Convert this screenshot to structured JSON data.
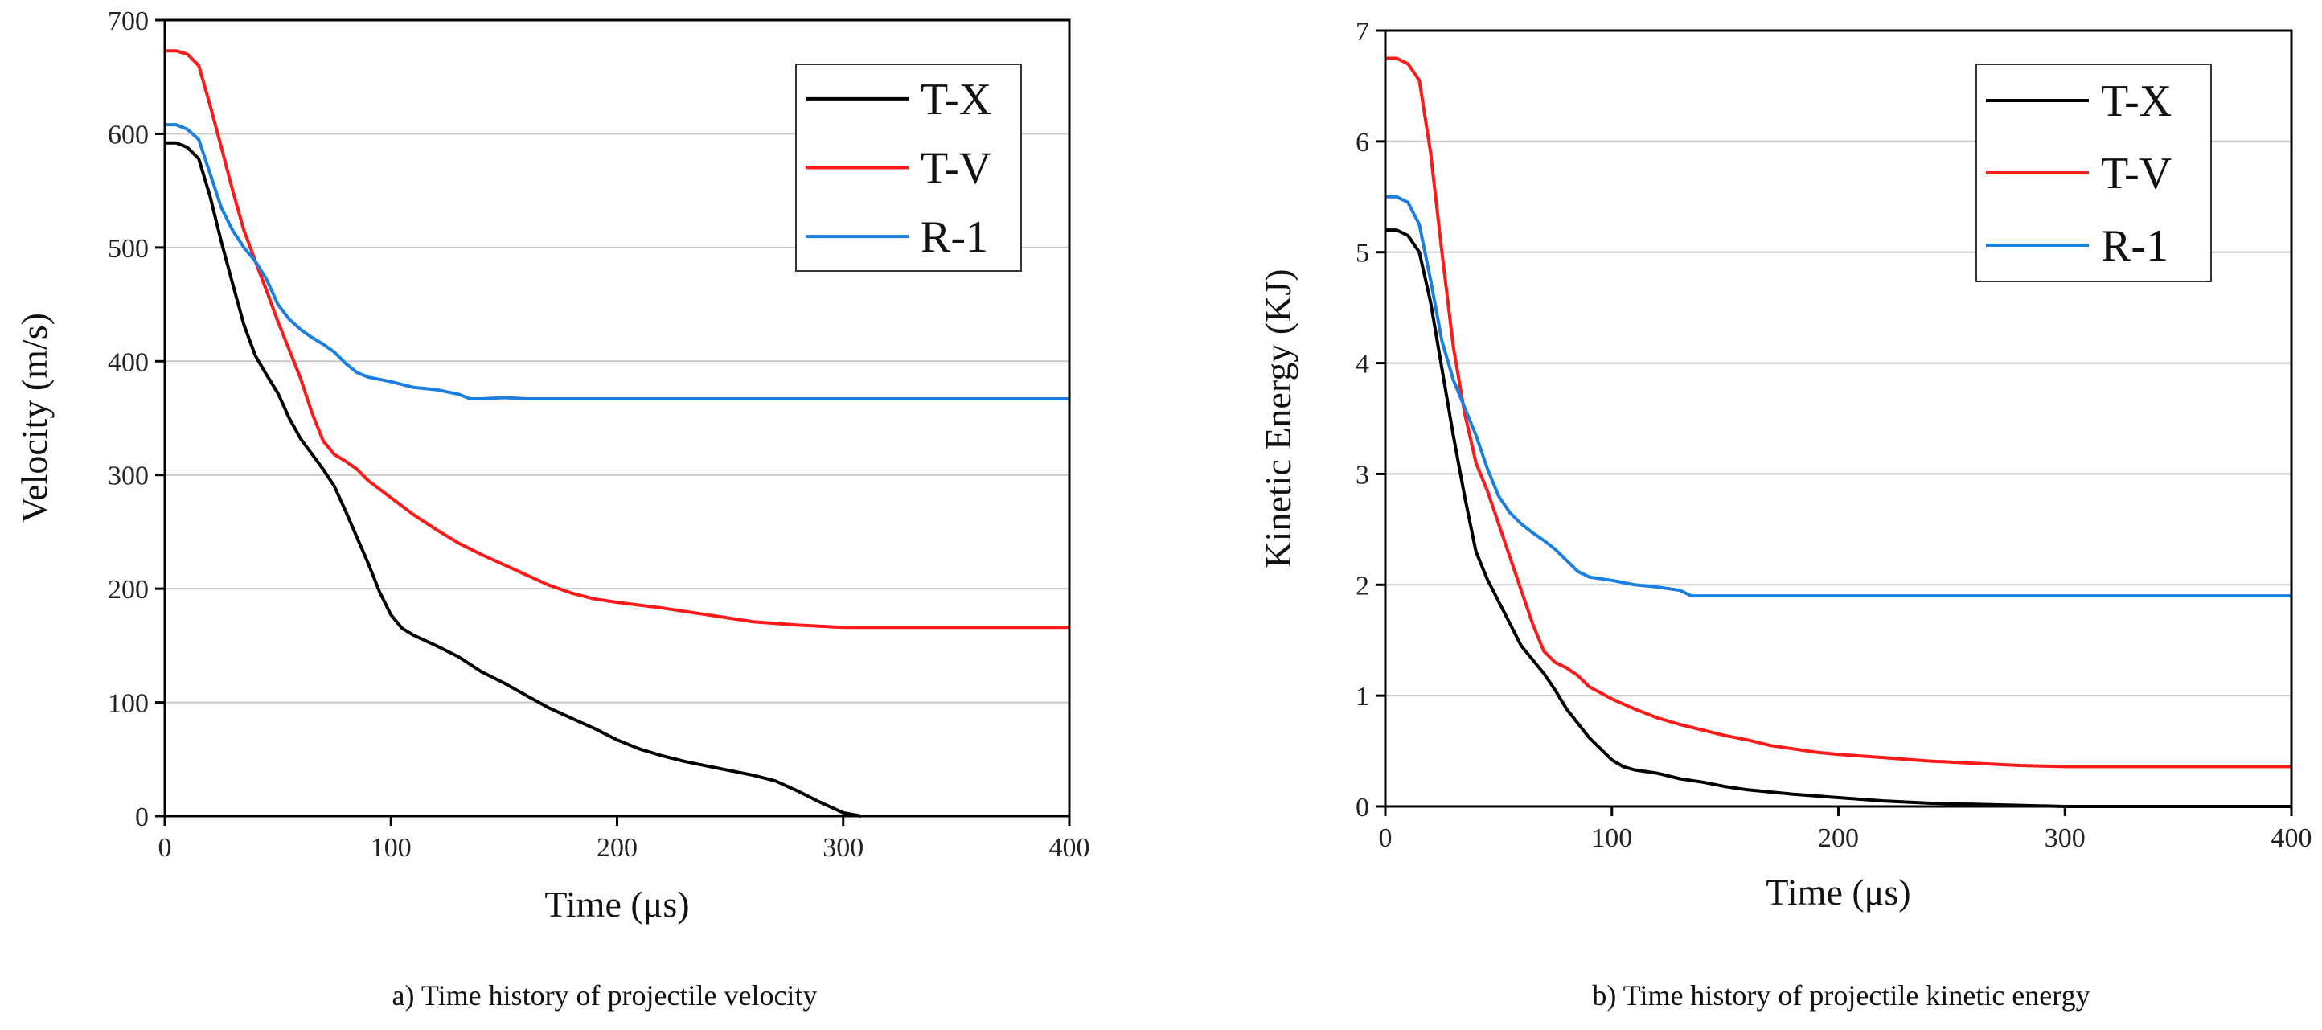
{
  "chart_data": [
    {
      "type": "line",
      "caption": "a) Time history of projectile velocity",
      "xlabel": "Time (μs)",
      "ylabel": "Velocity (m/s)",
      "xlim": [
        0,
        400
      ],
      "ylim": [
        0,
        700
      ],
      "xticks": [
        0,
        100,
        200,
        300,
        400
      ],
      "yticks": [
        0,
        100,
        200,
        300,
        400,
        500,
        600,
        700
      ],
      "grid": "horizontal",
      "legend": "top-right",
      "series": [
        {
          "name": "T-X",
          "color": "#000000",
          "points": [
            [
              0,
              592
            ],
            [
              5,
              592
            ],
            [
              10,
              588
            ],
            [
              15,
              578
            ],
            [
              20,
              545
            ],
            [
              25,
              505
            ],
            [
              30,
              468
            ],
            [
              35,
              432
            ],
            [
              40,
              405
            ],
            [
              45,
              388
            ],
            [
              50,
              372
            ],
            [
              55,
              350
            ],
            [
              60,
              332
            ],
            [
              70,
              305
            ],
            [
              75,
              290
            ],
            [
              80,
              268
            ],
            [
              90,
              222
            ],
            [
              95,
              197
            ],
            [
              100,
              177
            ],
            [
              105,
              165
            ],
            [
              110,
              159
            ],
            [
              120,
              150
            ],
            [
              130,
              140
            ],
            [
              140,
              127
            ],
            [
              150,
              117
            ],
            [
              160,
              106
            ],
            [
              170,
              95
            ],
            [
              180,
              86
            ],
            [
              190,
              77
            ],
            [
              200,
              67
            ],
            [
              210,
              59
            ],
            [
              220,
              53
            ],
            [
              230,
              48
            ],
            [
              240,
              44
            ],
            [
              250,
              40
            ],
            [
              260,
              36
            ],
            [
              270,
              31
            ],
            [
              280,
              22
            ],
            [
              290,
              12
            ],
            [
              300,
              3
            ],
            [
              308,
              0
            ]
          ]
        },
        {
          "name": "T-V",
          "color": "#ff1a1a",
          "points": [
            [
              0,
              673
            ],
            [
              5,
              673
            ],
            [
              10,
              670
            ],
            [
              15,
              660
            ],
            [
              20,
              625
            ],
            [
              25,
              588
            ],
            [
              30,
              550
            ],
            [
              35,
              515
            ],
            [
              40,
              488
            ],
            [
              45,
              462
            ],
            [
              50,
              435
            ],
            [
              55,
              410
            ],
            [
              60,
              385
            ],
            [
              65,
              355
            ],
            [
              70,
              330
            ],
            [
              75,
              318
            ],
            [
              80,
              312
            ],
            [
              85,
              305
            ],
            [
              90,
              295
            ],
            [
              100,
              280
            ],
            [
              110,
              265
            ],
            [
              120,
              252
            ],
            [
              130,
              240
            ],
            [
              140,
              230
            ],
            [
              150,
              221
            ],
            [
              160,
              212
            ],
            [
              170,
              203
            ],
            [
              180,
              196
            ],
            [
              190,
              191
            ],
            [
              200,
              188
            ],
            [
              220,
              183
            ],
            [
              240,
              177
            ],
            [
              260,
              171
            ],
            [
              280,
              168
            ],
            [
              300,
              166
            ],
            [
              320,
              166
            ],
            [
              400,
              166
            ]
          ]
        },
        {
          "name": "R-1",
          "color": "#1a7fe0",
          "points": [
            [
              0,
              608
            ],
            [
              5,
              608
            ],
            [
              10,
              604
            ],
            [
              15,
              595
            ],
            [
              20,
              565
            ],
            [
              25,
              535
            ],
            [
              30,
              515
            ],
            [
              35,
              500
            ],
            [
              40,
              488
            ],
            [
              45,
              472
            ],
            [
              50,
              450
            ],
            [
              55,
              437
            ],
            [
              60,
              428
            ],
            [
              65,
              421
            ],
            [
              70,
              415
            ],
            [
              75,
              408
            ],
            [
              80,
              398
            ],
            [
              85,
              390
            ],
            [
              90,
              386
            ],
            [
              100,
              382
            ],
            [
              110,
              377
            ],
            [
              120,
              375
            ],
            [
              130,
              371
            ],
            [
              135,
              367
            ],
            [
              140,
              367
            ],
            [
              150,
              368
            ],
            [
              160,
              367
            ],
            [
              400,
              367
            ]
          ]
        }
      ]
    },
    {
      "type": "line",
      "caption": "b) Time history of projectile kinetic energy",
      "xlabel": "Time (μs)",
      "ylabel": "Kinetic Energy (KJ)",
      "xlim": [
        0,
        400
      ],
      "ylim": [
        0,
        7
      ],
      "xticks": [
        0,
        100,
        200,
        300,
        400
      ],
      "yticks": [
        0,
        1,
        2,
        3,
        4,
        5,
        6,
        7
      ],
      "grid": "horizontal",
      "legend": "top-right",
      "series": [
        {
          "name": "T-X",
          "color": "#000000",
          "points": [
            [
              0,
              5.2
            ],
            [
              5,
              5.2
            ],
            [
              10,
              5.15
            ],
            [
              15,
              5.0
            ],
            [
              20,
              4.55
            ],
            [
              25,
              3.95
            ],
            [
              30,
              3.35
            ],
            [
              35,
              2.8
            ],
            [
              40,
              2.3
            ],
            [
              45,
              2.05
            ],
            [
              50,
              1.85
            ],
            [
              55,
              1.65
            ],
            [
              60,
              1.45
            ],
            [
              70,
              1.2
            ],
            [
              75,
              1.05
            ],
            [
              80,
              0.88
            ],
            [
              90,
              0.62
            ],
            [
              95,
              0.52
            ],
            [
              100,
              0.42
            ],
            [
              105,
              0.36
            ],
            [
              110,
              0.33
            ],
            [
              120,
              0.3
            ],
            [
              130,
              0.25
            ],
            [
              140,
              0.22
            ],
            [
              150,
              0.18
            ],
            [
              160,
              0.15
            ],
            [
              180,
              0.11
            ],
            [
              200,
              0.08
            ],
            [
              220,
              0.05
            ],
            [
              240,
              0.03
            ],
            [
              260,
              0.02
            ],
            [
              280,
              0.01
            ],
            [
              300,
              0.0
            ],
            [
              400,
              0.0
            ]
          ]
        },
        {
          "name": "T-V",
          "color": "#ff1a1a",
          "points": [
            [
              0,
              6.75
            ],
            [
              5,
              6.75
            ],
            [
              10,
              6.7
            ],
            [
              15,
              6.55
            ],
            [
              20,
              5.9
            ],
            [
              25,
              5.0
            ],
            [
              30,
              4.15
            ],
            [
              35,
              3.55
            ],
            [
              40,
              3.1
            ],
            [
              45,
              2.85
            ],
            [
              50,
              2.55
            ],
            [
              55,
              2.25
            ],
            [
              60,
              1.95
            ],
            [
              65,
              1.65
            ],
            [
              70,
              1.4
            ],
            [
              75,
              1.3
            ],
            [
              80,
              1.25
            ],
            [
              85,
              1.18
            ],
            [
              90,
              1.08
            ],
            [
              100,
              0.97
            ],
            [
              110,
              0.88
            ],
            [
              120,
              0.8
            ],
            [
              130,
              0.74
            ],
            [
              140,
              0.69
            ],
            [
              150,
              0.64
            ],
            [
              160,
              0.6
            ],
            [
              170,
              0.55
            ],
            [
              180,
              0.52
            ],
            [
              190,
              0.49
            ],
            [
              200,
              0.47
            ],
            [
              220,
              0.44
            ],
            [
              240,
              0.41
            ],
            [
              260,
              0.39
            ],
            [
              280,
              0.37
            ],
            [
              300,
              0.36
            ],
            [
              400,
              0.36
            ]
          ]
        },
        {
          "name": "R-1",
          "color": "#1a7fe0",
          "points": [
            [
              0,
              5.5
            ],
            [
              5,
              5.5
            ],
            [
              10,
              5.45
            ],
            [
              15,
              5.25
            ],
            [
              20,
              4.75
            ],
            [
              25,
              4.2
            ],
            [
              30,
              3.85
            ],
            [
              35,
              3.6
            ],
            [
              40,
              3.35
            ],
            [
              45,
              3.05
            ],
            [
              50,
              2.8
            ],
            [
              55,
              2.65
            ],
            [
              60,
              2.55
            ],
            [
              65,
              2.47
            ],
            [
              70,
              2.4
            ],
            [
              75,
              2.32
            ],
            [
              80,
              2.22
            ],
            [
              85,
              2.12
            ],
            [
              90,
              2.07
            ],
            [
              100,
              2.04
            ],
            [
              110,
              2.0
            ],
            [
              120,
              1.98
            ],
            [
              130,
              1.95
            ],
            [
              135,
              1.9
            ],
            [
              140,
              1.9
            ],
            [
              400,
              1.9
            ]
          ]
        }
      ]
    }
  ]
}
